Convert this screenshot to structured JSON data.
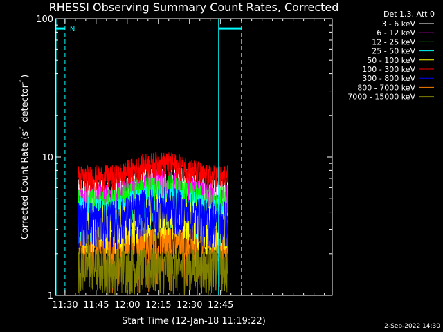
{
  "chart_data": {
    "type": "line",
    "title": "RHESSI Observing Summary Count Rates, Corrected",
    "xlabel": "Start Time (12-Jan-18 11:19:22)",
    "ylabel_main": "Corrected Count Rate (s",
    "ylabel_sup1": "-1",
    "ylabel_mid": " detector",
    "ylabel_sup2": "-1",
    "ylabel_end": ")",
    "y_scale": "log",
    "ylim": [
      1,
      100
    ],
    "xlim_min": [
      685.37,
      818.8
    ],
    "x_ticks": [
      {
        "min": 690,
        "label": "11:30"
      },
      {
        "min": 705,
        "label": "11:45"
      },
      {
        "min": 720,
        "label": "12:00"
      },
      {
        "min": 735,
        "label": "12:15"
      },
      {
        "min": 750,
        "label": "12:30"
      },
      {
        "min": 765,
        "label": "12:45"
      }
    ],
    "y_ticks": [
      {
        "value": 1,
        "label": "1"
      },
      {
        "value": 10,
        "label": "10"
      },
      {
        "value": 100,
        "label": "100"
      }
    ],
    "legend_header": "Det 1,3, Att 0",
    "legend_placement": "right",
    "series": [
      {
        "name": "3 - 6 keV",
        "color": "#ffffff",
        "base": 5.2,
        "start": 696.5,
        "end": 768.3
      },
      {
        "name": "6 - 12 keV",
        "color": "#ff00ff",
        "base": 4.8,
        "start": 696.5,
        "end": 768.3
      },
      {
        "name": "12 - 25 keV",
        "color": "#00ff00",
        "base": 4.5,
        "start": 696.5,
        "end": 768.3
      },
      {
        "name": "25 - 50 keV",
        "color": "#00ffff",
        "base": 3.8,
        "start": 696.5,
        "end": 768.3
      },
      {
        "name": "50 - 100 keV",
        "color": "#ffff00",
        "base": 3.3,
        "start": 696.5,
        "end": 768.3
      },
      {
        "name": "100 - 300 keV",
        "color": "#ff0000",
        "base": 7.0,
        "start": 696.5,
        "end": 768.3
      },
      {
        "name": "300 - 800 keV",
        "color": "#0000ff",
        "base": 3.6,
        "start": 696.5,
        "end": 768.3
      },
      {
        "name": "800 - 7000 keV",
        "color": "#ff8000",
        "base": 2.0,
        "start": 696.5,
        "end": 768.3
      },
      {
        "name": "7000 - 15000 keV",
        "color": "#808000",
        "base": 1.5,
        "start": 696.5,
        "end": 768.3
      }
    ],
    "annotations": {
      "night_label": "N",
      "night_intervals": [
        [
          680,
          690
        ],
        [
          764,
          775
        ]
      ],
      "saa_lines": [
        690,
        775
      ],
      "night_line_color": "#00ffff"
    },
    "footer_date": "2-Sep-2022 14:30"
  }
}
